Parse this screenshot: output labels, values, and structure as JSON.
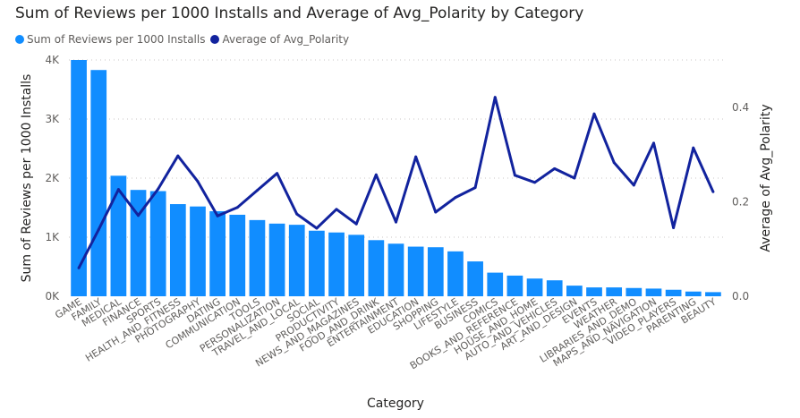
{
  "chart_data": {
    "type": "bar",
    "title": "Sum of Reviews per 1000 Installs and Average of Avg_Polarity by Category",
    "xlabel": "Category",
    "ylabel": "Sum of Reviews per 1000 Installs",
    "y2label": "Average of Avg_Polarity",
    "legend_position": "top-left",
    "grid": true,
    "ylim": [
      0,
      4000
    ],
    "y2lim": [
      0,
      0.5
    ],
    "y_ticks": [
      {
        "value": 0,
        "label": "0K"
      },
      {
        "value": 1000,
        "label": "1K"
      },
      {
        "value": 2000,
        "label": "2K"
      },
      {
        "value": 3000,
        "label": "3K"
      },
      {
        "value": 4000,
        "label": "4K"
      }
    ],
    "y2_ticks": [
      {
        "value": 0.0,
        "label": "0.0"
      },
      {
        "value": 0.2,
        "label": "0.2"
      },
      {
        "value": 0.4,
        "label": "0.4"
      }
    ],
    "categories": [
      "GAME",
      "FAMILY",
      "MEDICAL",
      "FINANCE",
      "SPORTS",
      "HEALTH_AND_FITNESS",
      "PHOTOGRAPHY",
      "DATING",
      "COMMUNICATION",
      "TOOLS",
      "PERSONALIZATION",
      "TRAVEL_AND_LOCAL",
      "SOCIAL",
      "PRODUCTIVITY",
      "NEWS_AND_MAGAZINES",
      "FOOD_AND_DRINK",
      "ENTERTAINMENT",
      "EDUCATION",
      "SHOPPING",
      "LIFESTYLE",
      "BUSINESS",
      "COMICS",
      "BOOKS_AND_REFERENCE",
      "HOUSE_AND_HOME",
      "AUTO_AND_VEHICLES",
      "ART_AND_DESIGN",
      "EVENTS",
      "WEATHER",
      "LIBRARIES_AND_DEMO",
      "MAPS_AND_NAVIGATION",
      "VIDEO_PLAYERS",
      "PARENTING",
      "BEAUTY"
    ],
    "series": [
      {
        "name": "Sum of Reviews per 1000 Installs",
        "type": "bar",
        "axis": "left",
        "color": "#118DFF",
        "values": [
          4000,
          3830,
          2040,
          1800,
          1780,
          1560,
          1520,
          1440,
          1380,
          1290,
          1230,
          1210,
          1110,
          1080,
          1040,
          950,
          890,
          840,
          830,
          760,
          590,
          400,
          350,
          300,
          270,
          180,
          150,
          150,
          140,
          130,
          110,
          80,
          70
        ]
      },
      {
        "name": "Average of Avg_Polarity",
        "type": "line",
        "axis": "right",
        "color": "#12239E",
        "values": [
          0.06,
          0.141,
          0.226,
          0.171,
          0.227,
          0.297,
          0.243,
          0.17,
          0.188,
          0.224,
          0.26,
          0.174,
          0.144,
          0.184,
          0.153,
          0.257,
          0.157,
          0.295,
          0.178,
          0.209,
          0.23,
          0.421,
          0.256,
          0.241,
          0.27,
          0.25,
          0.386,
          0.283,
          0.235,
          0.324,
          0.145,
          0.314,
          0.221
        ]
      }
    ]
  }
}
